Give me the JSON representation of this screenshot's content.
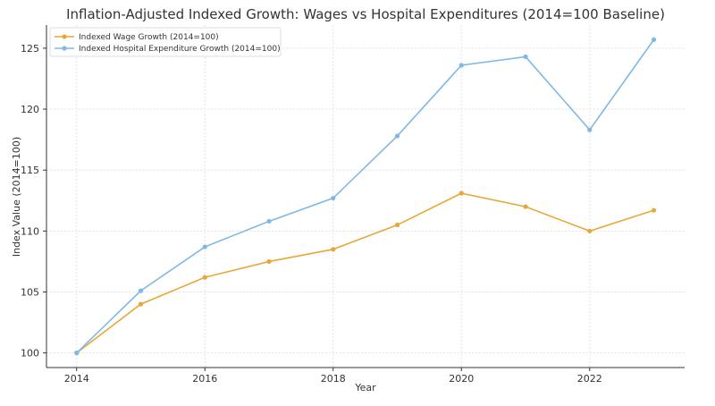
{
  "chart_data": {
    "type": "line",
    "title": "Inflation-Adjusted Indexed Growth: Wages vs Hospital Expenditures (2014=100 Baseline)",
    "xlabel": "Year",
    "ylabel": "Index Value (2014=100)",
    "x": [
      2014,
      2015,
      2016,
      2017,
      2018,
      2019,
      2020,
      2021,
      2022,
      2023
    ],
    "xticks": [
      2014,
      2016,
      2018,
      2020,
      2022
    ],
    "yticks": [
      100,
      105,
      110,
      115,
      120,
      125
    ],
    "xlim": [
      2013.53,
      2023.48
    ],
    "ylim": [
      98.8,
      126.9
    ],
    "grid": true,
    "legend_position": "top-left",
    "series": [
      {
        "name": "Indexed Wage Growth (2014=100)",
        "color": "#E8A838",
        "values": [
          100,
          104.0,
          106.2,
          107.5,
          108.5,
          110.5,
          113.1,
          112.0,
          110.0,
          111.7
        ]
      },
      {
        "name": "Indexed Hospital Expenditure Growth (2014=100)",
        "color": "#7FB8E6",
        "values": [
          100,
          105.1,
          108.7,
          110.8,
          112.7,
          117.8,
          123.6,
          124.3,
          118.3,
          125.7
        ]
      }
    ]
  }
}
